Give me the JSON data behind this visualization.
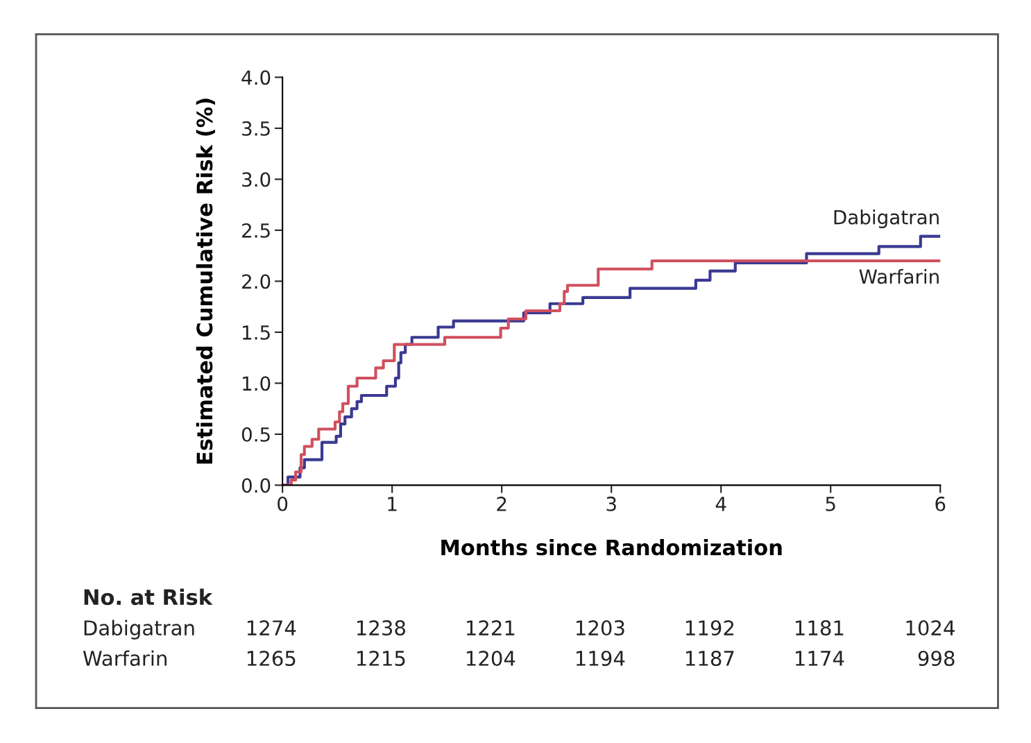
{
  "chart_data": {
    "type": "step",
    "xlabel": "Months since Randomization",
    "ylabel": "Estimated Cumulative Risk (%)",
    "xlim": [
      0,
      6
    ],
    "xticks": [
      0,
      1,
      2,
      3,
      4,
      5,
      6
    ],
    "ylim": [
      0,
      4
    ],
    "yticks": [
      {
        "value": 0,
        "label": "0.0"
      },
      {
        "value": 0.5,
        "label": "0.5"
      },
      {
        "value": 1,
        "label": "1.0"
      },
      {
        "value": 1.5,
        "label": "1.5"
      },
      {
        "value": 2,
        "label": "2.0"
      },
      {
        "value": 2.5,
        "label": "2.5"
      },
      {
        "value": 3,
        "label": "3.0"
      },
      {
        "value": 3.5,
        "label": "3.5"
      },
      {
        "value": 4,
        "label": "4.0"
      }
    ],
    "grid": false,
    "legend": false,
    "series": [
      {
        "name": "Dabigatran",
        "color": "#3a3a93",
        "x": [
          0,
          0.05,
          0.16,
          0.2,
          0.36,
          0.49,
          0.53,
          0.57,
          0.63,
          0.68,
          0.72,
          0.95,
          1.03,
          1.06,
          1.08,
          1.12,
          1.18,
          1.42,
          1.56,
          2.2,
          2.44,
          2.74,
          3.17,
          3.77,
          3.9,
          4.13,
          4.78,
          5.44,
          5.82,
          6.0
        ],
        "values": [
          0,
          0.08,
          0.17,
          0.25,
          0.42,
          0.48,
          0.6,
          0.67,
          0.75,
          0.82,
          0.88,
          0.97,
          1.05,
          1.2,
          1.3,
          1.38,
          1.45,
          1.55,
          1.61,
          1.69,
          1.78,
          1.84,
          1.93,
          2.01,
          2.1,
          2.18,
          2.27,
          2.34,
          2.44,
          2.44
        ]
      },
      {
        "name": "Warfarin",
        "color": "#d0505e",
        "x": [
          0,
          0.08,
          0.12,
          0.17,
          0.2,
          0.27,
          0.33,
          0.48,
          0.52,
          0.55,
          0.6,
          0.68,
          0.85,
          0.92,
          1.02,
          1.48,
          1.99,
          2.06,
          2.22,
          2.53,
          2.57,
          2.6,
          2.88,
          3.37,
          6.0
        ],
        "values": [
          0,
          0.05,
          0.13,
          0.3,
          0.38,
          0.45,
          0.55,
          0.62,
          0.72,
          0.8,
          0.97,
          1.05,
          1.15,
          1.22,
          1.38,
          1.45,
          1.54,
          1.63,
          1.71,
          1.78,
          1.9,
          1.96,
          2.12,
          2.2,
          2.2
        ]
      }
    ],
    "annotations": [
      "No. at Risk",
      "Dabigatran",
      "1274",
      "1238",
      "1221",
      "1203",
      "1192",
      "1181",
      "1024",
      "Warfarin",
      "1265",
      "1215",
      "1204",
      "1194",
      "1187",
      "1174",
      "998"
    ]
  }
}
